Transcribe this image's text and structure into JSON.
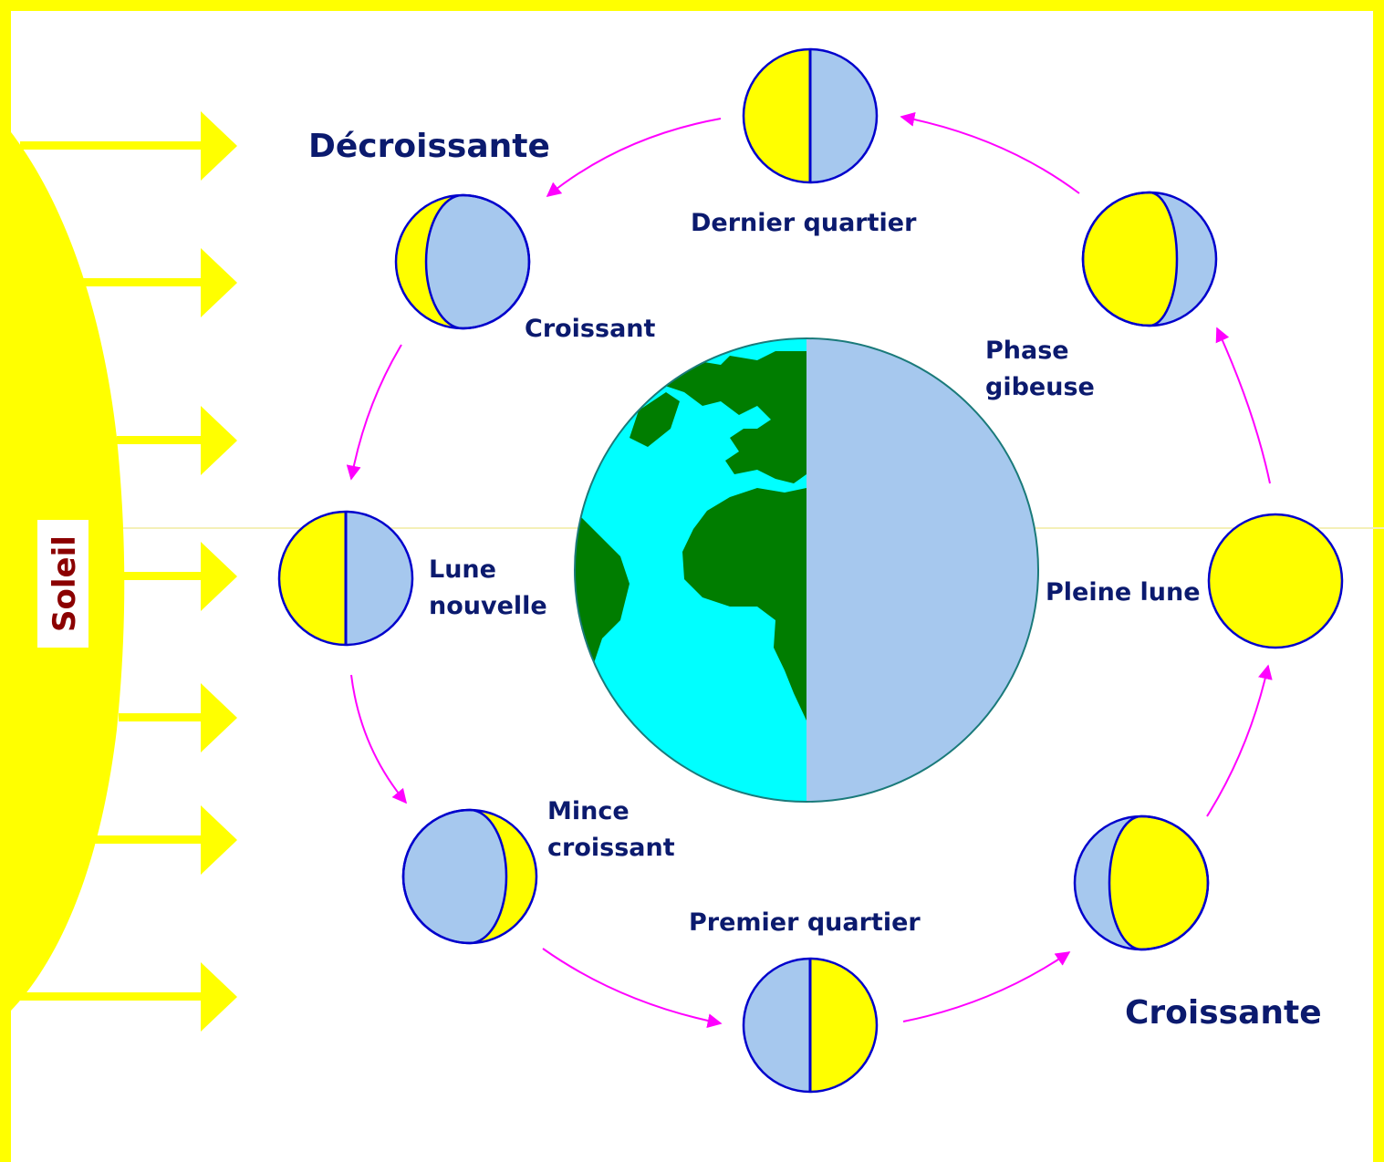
{
  "labels": {
    "sun": "Soleil",
    "waning": "Décroissante",
    "waxing": "Croissante",
    "last_quarter": "Dernier quartier",
    "crescent_waning": "Croissant",
    "gibbous_line1": "Phase",
    "gibbous_line2": "gibeuse",
    "new_moon_line1": "Lune",
    "new_moon_line2": "nouvelle",
    "full_moon": "Pleine lune",
    "thin_crescent_line1": "Mince",
    "thin_crescent_line2": "croissant",
    "first_quarter": "Premier quartier"
  },
  "colors": {
    "frame": "#ffff00",
    "sun": "#ffff00",
    "sun_rays": "#ffff00",
    "moon_lit": "#ffff00",
    "moon_dark": "#a6c8ee",
    "moon_outline": "#0000cc",
    "orbit_arrows": "#ff00ff",
    "earth_ocean": "#00ffff",
    "earth_land": "#007d00",
    "earth_night": "#a6c8ee",
    "label_text": "#0b1a6e",
    "sun_label_text": "#8b0000"
  }
}
